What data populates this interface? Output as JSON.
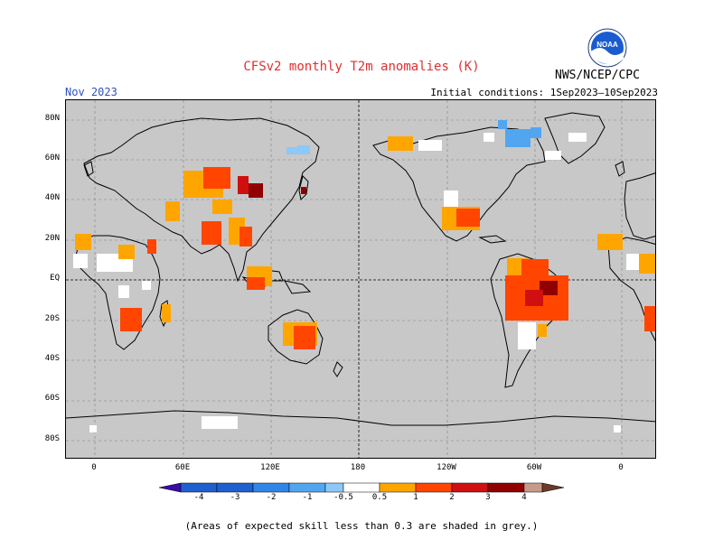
{
  "header": {
    "title": "CFSv2 monthly T2m anomalies (K)",
    "title_color": "#e03030",
    "agency": "NWS/NCEP/CPC",
    "logo_text": "NOAA",
    "month": "Nov 2023",
    "month_color": "#3050c0",
    "initial_conditions": "Initial conditions: 1Sep2023–10Sep2023"
  },
  "map": {
    "background_color": "#c8c8c8",
    "lat_labels": [
      "80N",
      "60N",
      "40N",
      "20N",
      "EQ",
      "20S",
      "40S",
      "60S",
      "80S"
    ],
    "lon_labels": [
      "0",
      "60E",
      "120E",
      "180",
      "120W",
      "60W",
      "0"
    ],
    "grid": "dashed"
  },
  "legend": {
    "ticks": [
      "-4",
      "-3",
      "-2",
      "-1",
      "-0.5",
      "0.5",
      "1",
      "2",
      "3",
      "4"
    ],
    "colors": [
      "#3a0ca8",
      "#1f5fd0",
      "#2f86e8",
      "#52a6f0",
      "#8cc8f8",
      "#ffffff",
      "#ffa500",
      "#ff4500",
      "#d01010",
      "#900000",
      "#c89a8a",
      "#6a3a2a"
    ]
  },
  "footnote": "(Areas of expected skill less than 0.3 are shaded in grey.)"
}
